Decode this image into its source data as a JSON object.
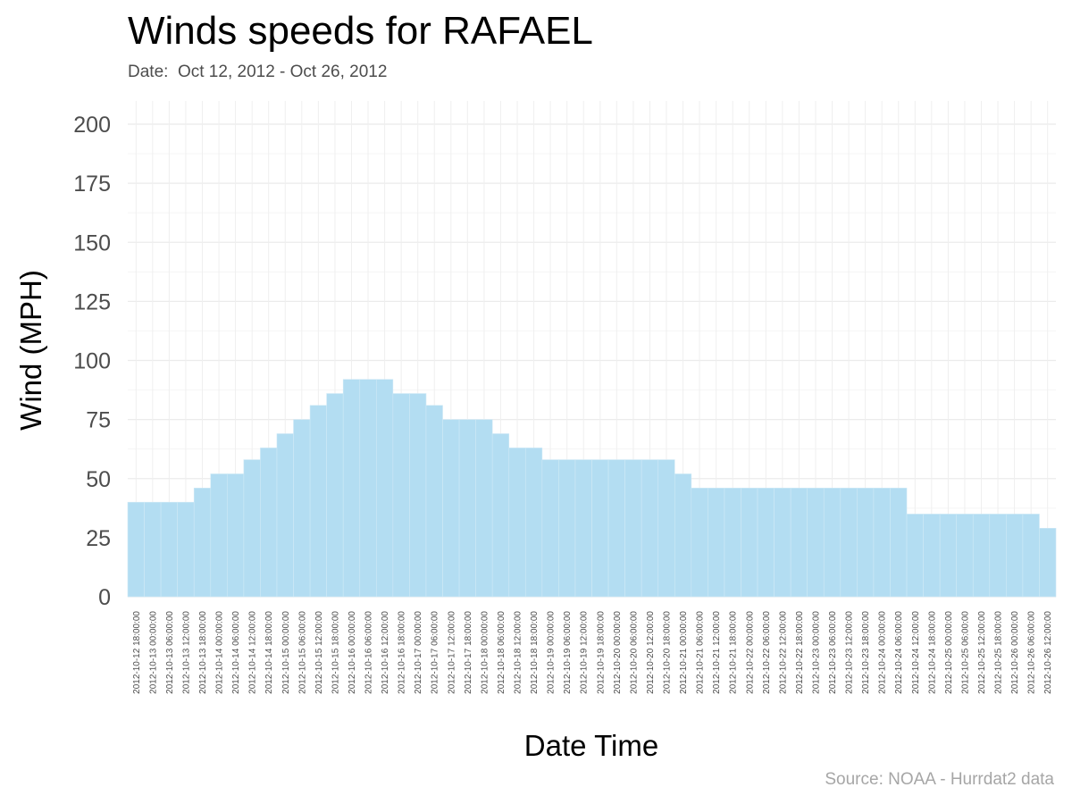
{
  "chart_data": {
    "type": "bar",
    "title": "Winds speeds for RAFAEL",
    "subtitle": "Date:  Oct 12, 2012 - Oct 26, 2012",
    "caption": "Source: NOAA - Hurrdat2 data",
    "xlabel": "Date Time",
    "ylabel": "Wind (MPH)",
    "ylim": [
      0,
      200
    ],
    "yticks": [
      "0",
      "25",
      "50",
      "75",
      "100",
      "125",
      "150",
      "175",
      "200"
    ],
    "grid": true,
    "bar_color": "#b3ddf2",
    "categories": [
      "2012-10-12 18:00:00",
      "2012-10-13 00:00:00",
      "2012-10-13 06:00:00",
      "2012-10-13 12:00:00",
      "2012-10-13 18:00:00",
      "2012-10-14 00:00:00",
      "2012-10-14 06:00:00",
      "2012-10-14 12:00:00",
      "2012-10-14 18:00:00",
      "2012-10-15 00:00:00",
      "2012-10-15 06:00:00",
      "2012-10-15 12:00:00",
      "2012-10-15 18:00:00",
      "2012-10-16 00:00:00",
      "2012-10-16 06:00:00",
      "2012-10-16 12:00:00",
      "2012-10-16 18:00:00",
      "2012-10-17 00:00:00",
      "2012-10-17 06:00:00",
      "2012-10-17 12:00:00",
      "2012-10-17 18:00:00",
      "2012-10-18 00:00:00",
      "2012-10-18 06:00:00",
      "2012-10-18 12:00:00",
      "2012-10-18 18:00:00",
      "2012-10-19 00:00:00",
      "2012-10-19 06:00:00",
      "2012-10-19 12:00:00",
      "2012-10-19 18:00:00",
      "2012-10-20 00:00:00",
      "2012-10-20 06:00:00",
      "2012-10-20 12:00:00",
      "2012-10-20 18:00:00",
      "2012-10-21 00:00:00",
      "2012-10-21 06:00:00",
      "2012-10-21 12:00:00",
      "2012-10-21 18:00:00",
      "2012-10-22 00:00:00",
      "2012-10-22 06:00:00",
      "2012-10-22 12:00:00",
      "2012-10-22 18:00:00",
      "2012-10-23 00:00:00",
      "2012-10-23 06:00:00",
      "2012-10-23 12:00:00",
      "2012-10-23 18:00:00",
      "2012-10-24 00:00:00",
      "2012-10-24 06:00:00",
      "2012-10-24 12:00:00",
      "2012-10-24 18:00:00",
      "2012-10-25 00:00:00",
      "2012-10-25 06:00:00",
      "2012-10-25 12:00:00",
      "2012-10-25 18:00:00",
      "2012-10-26 00:00:00",
      "2012-10-26 06:00:00",
      "2012-10-26 12:00:00"
    ],
    "values": [
      40,
      40,
      40,
      40,
      46,
      52,
      52,
      58,
      63,
      69,
      75,
      81,
      86,
      92,
      92,
      92,
      86,
      86,
      81,
      75,
      75,
      75,
      69,
      63,
      63,
      58,
      58,
      58,
      58,
      58,
      58,
      58,
      58,
      52,
      46,
      46,
      46,
      46,
      46,
      46,
      46,
      46,
      46,
      46,
      46,
      46,
      46,
      35,
      35,
      35,
      35,
      35,
      35,
      35,
      35,
      29
    ]
  }
}
